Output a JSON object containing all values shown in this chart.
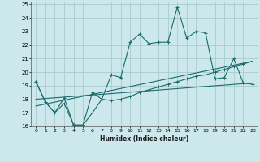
{
  "xlabel": "Humidex (Indice chaleur)",
  "bg_color": "#cce8ec",
  "grid_color": "#aacccc",
  "line_color": "#1a6b6b",
  "xlim": [
    -0.5,
    23.5
  ],
  "ylim": [
    16,
    25.2
  ],
  "yticks": [
    16,
    17,
    18,
    19,
    20,
    21,
    22,
    23,
    24,
    25
  ],
  "xticks": [
    0,
    1,
    2,
    3,
    4,
    5,
    6,
    7,
    8,
    9,
    10,
    11,
    12,
    13,
    14,
    15,
    16,
    17,
    18,
    19,
    20,
    21,
    22,
    23
  ],
  "series1_x": [
    0,
    1,
    2,
    3,
    4,
    5,
    6,
    7,
    8,
    9,
    10,
    11,
    12,
    13,
    14,
    15,
    16,
    17,
    18,
    19,
    20,
    21,
    22,
    23
  ],
  "series1_y": [
    19.3,
    17.8,
    17.0,
    18.1,
    16.1,
    16.1,
    18.5,
    18.0,
    19.8,
    19.6,
    22.2,
    22.8,
    22.1,
    22.2,
    22.2,
    24.8,
    22.5,
    23.0,
    22.9,
    19.5,
    19.6,
    21.0,
    19.2,
    19.1
  ],
  "series2_x": [
    0,
    1,
    2,
    3,
    4,
    5,
    6,
    7,
    8,
    9,
    10,
    11,
    12,
    13,
    14,
    15,
    16,
    17,
    18,
    19,
    20,
    21,
    22,
    23
  ],
  "series2_y": [
    19.3,
    17.8,
    17.0,
    17.7,
    16.1,
    16.1,
    17.0,
    18.0,
    17.9,
    18.0,
    18.2,
    18.5,
    18.7,
    18.9,
    19.1,
    19.3,
    19.5,
    19.7,
    19.8,
    20.0,
    20.2,
    20.4,
    20.6,
    20.8
  ],
  "series3_x": [
    0,
    23
  ],
  "series3_y": [
    17.5,
    20.8
  ],
  "series4_x": [
    0,
    23
  ],
  "series4_y": [
    18.0,
    19.2
  ]
}
